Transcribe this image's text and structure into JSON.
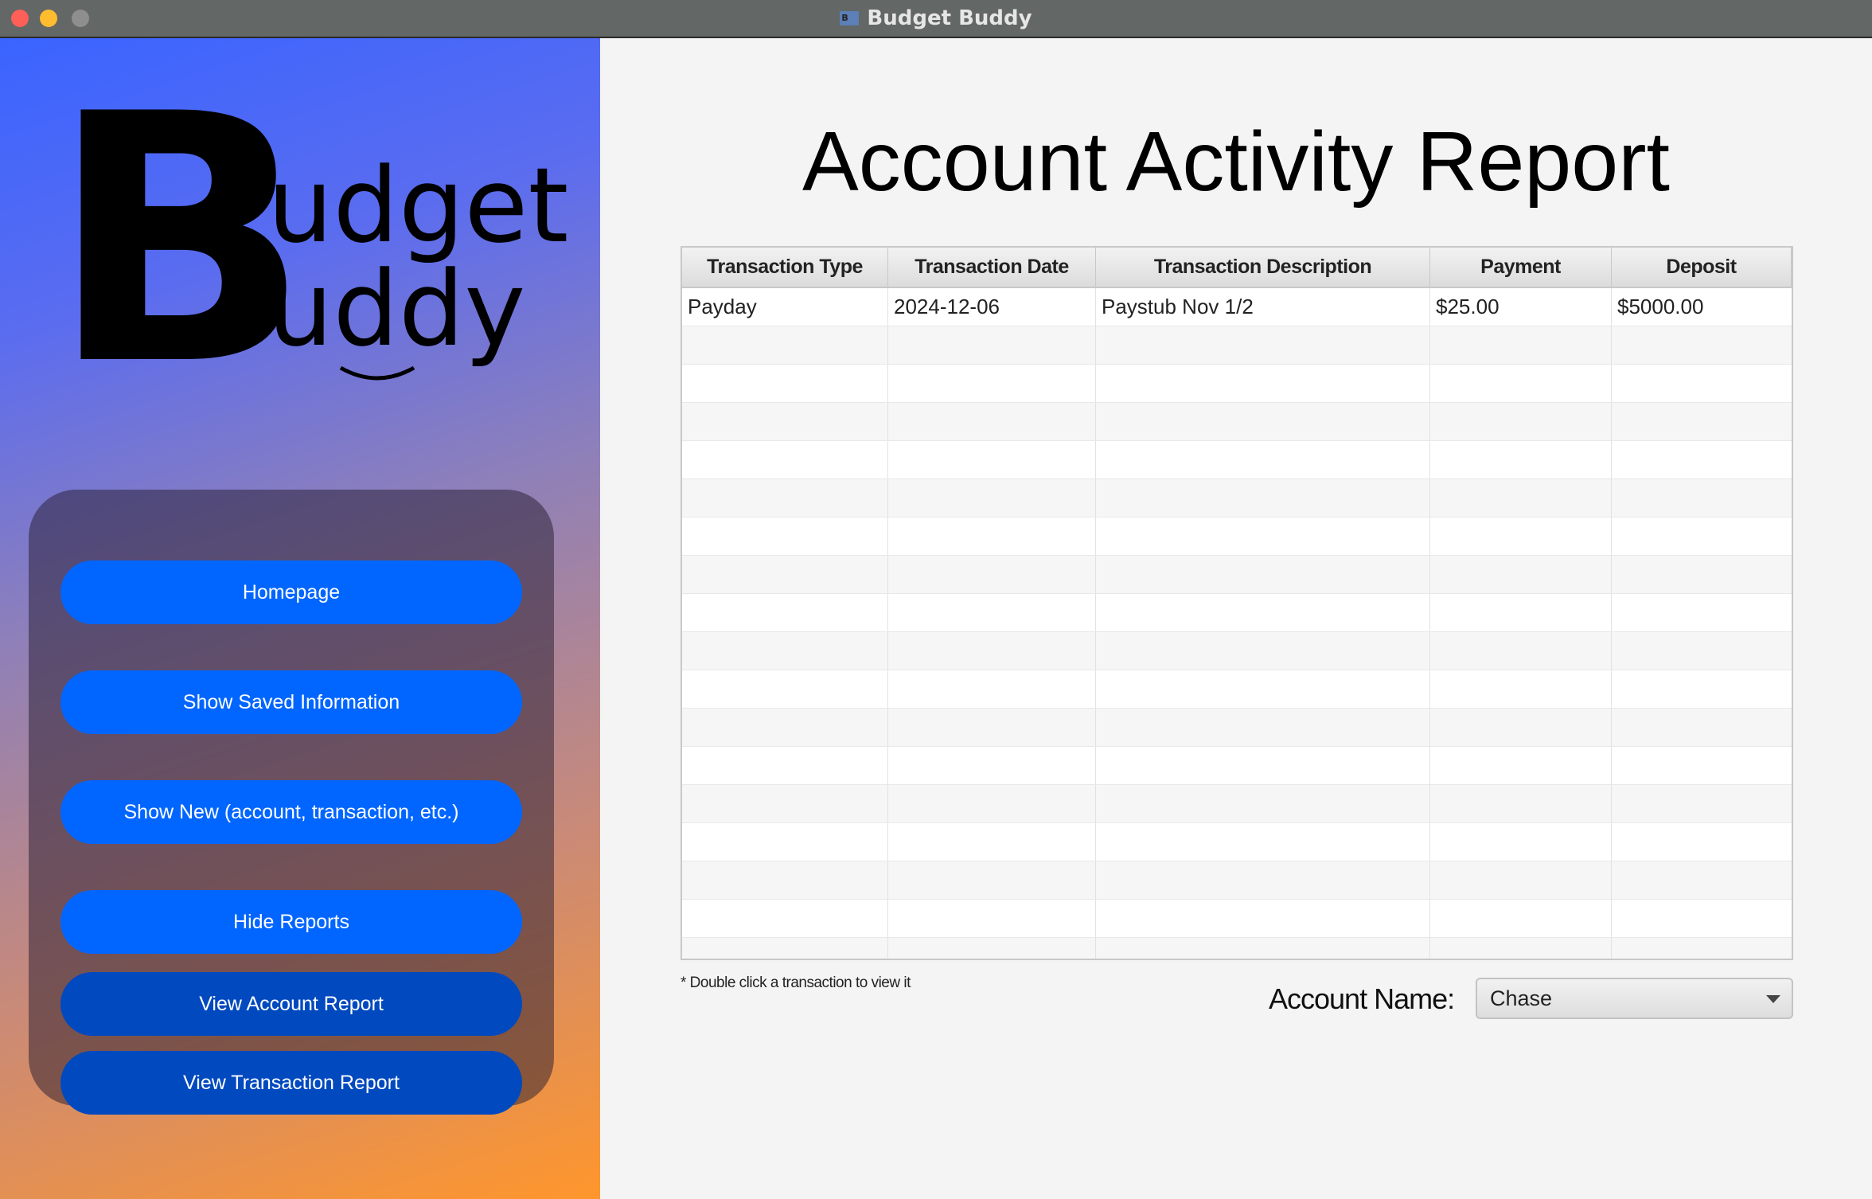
{
  "window": {
    "title": "Budget Buddy",
    "app_icon": "budget-buddy-app-icon",
    "controls": {
      "close": "#fe5f57",
      "minimize": "#febc2e",
      "zoom": "#8e8e8e"
    }
  },
  "logo": {
    "big_letter": "B",
    "line1": "udget",
    "line2": "uddy"
  },
  "sidebar": {
    "buttons": [
      {
        "label": "Homepage",
        "active": false
      },
      {
        "label": "Show Saved Information",
        "active": false
      },
      {
        "label": "Show New (account, transaction, etc.)",
        "active": false
      },
      {
        "label": "Hide Reports",
        "active": false
      },
      {
        "label": "View Account Report",
        "active": true
      },
      {
        "label": "View Transaction Report",
        "active": true
      }
    ]
  },
  "colors": {
    "button": "#0066ff",
    "button_active": "#0049bf",
    "gradient_start": "#3a64ff",
    "gradient_end": "#ff962c"
  },
  "main": {
    "title": "Account Activity Report",
    "table": {
      "columns": [
        "Transaction Type",
        "Transaction Date",
        "Transaction Description",
        "Payment",
        "Deposit"
      ],
      "rows": [
        [
          "Payday",
          "2024-12-06",
          "Paystub Nov 1/2",
          "$25.00",
          "$5000.00"
        ]
      ]
    },
    "hint": "* Double click a transaction to view it",
    "account_label": "Account Name:",
    "account_select": {
      "value": "Chase"
    }
  }
}
